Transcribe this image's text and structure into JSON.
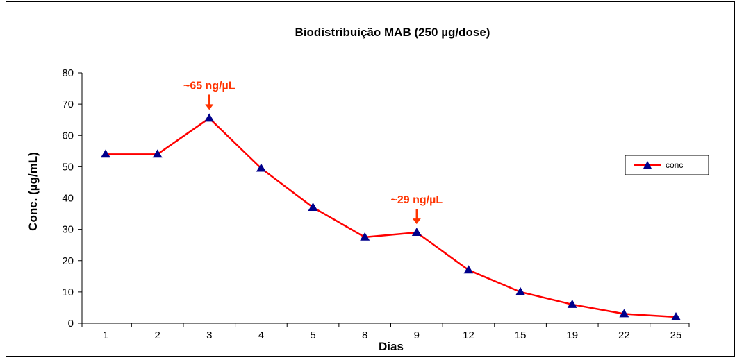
{
  "chart_data": {
    "type": "line",
    "title": "Biodistribuição MAB (250 µg/dose)",
    "xlabel": "Dias",
    "ylabel": "Conc. (µg/mL)",
    "categories": [
      "1",
      "2",
      "3",
      "4",
      "5",
      "8",
      "9",
      "12",
      "15",
      "19",
      "22",
      "25"
    ],
    "series": [
      {
        "name": "conc",
        "values": [
          54,
          54,
          65.5,
          49.5,
          37,
          27.5,
          29,
          17,
          10,
          6,
          3,
          2
        ]
      }
    ],
    "ylim": [
      0,
      80
    ],
    "yticks": [
      "0",
      "10",
      "20",
      "30",
      "40",
      "50",
      "60",
      "70",
      "80"
    ],
    "grid": false,
    "legend_position": "right",
    "annotations": [
      {
        "text": "~65 ng/µL",
        "category": "3",
        "value": 65.5
      },
      {
        "text": "~29 ng/µL",
        "category": "9",
        "value": 29
      }
    ],
    "colors": {
      "line": "#ff0000",
      "marker": "#00008b",
      "annotation": "#ff3300",
      "axis": "#000000"
    }
  }
}
